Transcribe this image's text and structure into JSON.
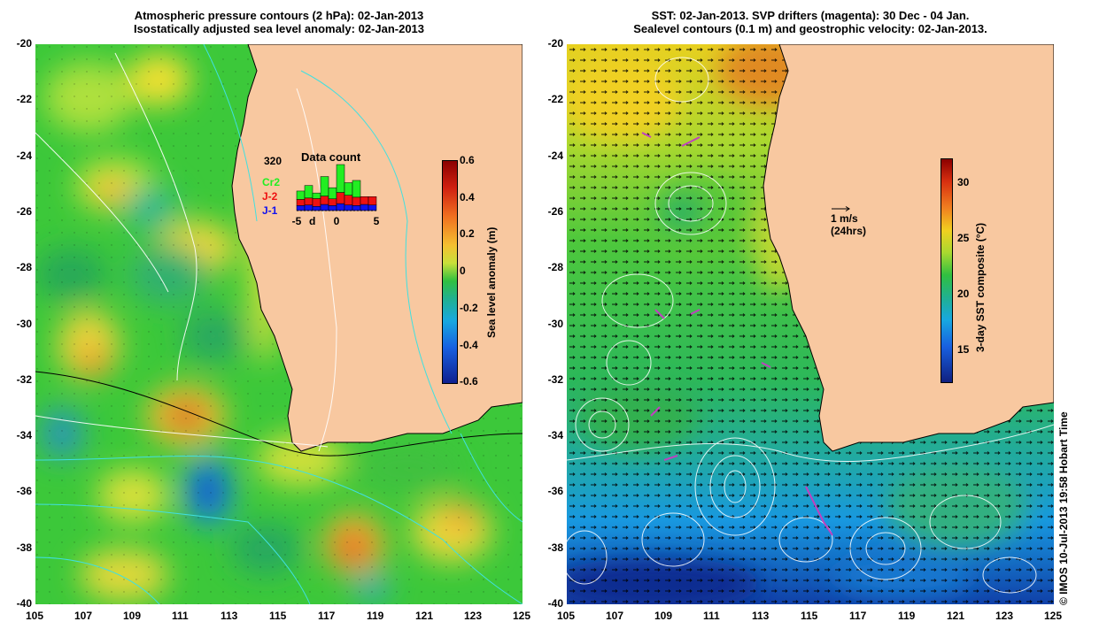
{
  "left_panel": {
    "title_line1": "Atmospheric pressure contours (2 hPa): 02-Jan-2013",
    "title_line2": "Isostatically adjusted sea level anomaly: 02-Jan-2013",
    "colorbar": {
      "label": "Sea level anomaly (m)",
      "ticks": [
        "0.6",
        "0.4",
        "0.2",
        "0",
        "-0.2",
        "-0.4",
        "-0.6"
      ]
    },
    "inset": {
      "title": "Data count",
      "max_label": "320",
      "legend": [
        {
          "name": "Cr2",
          "color": "#22ee22"
        },
        {
          "name": "J-2",
          "color": "#ee1111"
        },
        {
          "name": "J-1",
          "color": "#1111ee"
        }
      ],
      "x_ticks": [
        "-5",
        "0",
        "5"
      ],
      "x_tick_values": [
        -5,
        0,
        5
      ],
      "x_range": [
        -5,
        5
      ],
      "d_label": "d",
      "bars": [
        {
          "day": -5,
          "j1": 18,
          "j2": 22,
          "cr2": 30
        },
        {
          "day": -4,
          "j1": 20,
          "j2": 25,
          "cr2": 45
        },
        {
          "day": -3,
          "j1": 15,
          "j2": 28,
          "cr2": 20
        },
        {
          "day": -2,
          "j1": 22,
          "j2": 30,
          "cr2": 70
        },
        {
          "day": -1,
          "j1": 18,
          "j2": 24,
          "cr2": 40
        },
        {
          "day": 0,
          "j1": 25,
          "j2": 40,
          "cr2": 100
        },
        {
          "day": 1,
          "j1": 20,
          "j2": 35,
          "cr2": 45
        },
        {
          "day": 2,
          "j1": 18,
          "j2": 30,
          "cr2": 60
        },
        {
          "day": 3,
          "j1": 22,
          "j2": 28,
          "cr2": 0
        },
        {
          "day": 4,
          "j1": 20,
          "j2": 30,
          "cr2": 0
        }
      ]
    }
  },
  "right_panel": {
    "title_line1": "SST: 02-Jan-2013. SVP drifters (magenta): 30 Dec - 04 Jan.",
    "title_line2": "Sealevel contours (0.1 m) and geostrophic velocity: 02-Jan-2013.",
    "colorbar": {
      "label": "3-day SST composite (°C)",
      "ticks": [
        "30",
        "25",
        "20",
        "15"
      ]
    },
    "vector_scale": {
      "line1": "1 m/s",
      "line2": "(24hrs)"
    }
  },
  "axes": {
    "lat_ticks": [
      "-20",
      "-22",
      "-24",
      "-26",
      "-28",
      "-30",
      "-32",
      "-34",
      "-36",
      "-38",
      "-40"
    ],
    "lon_ticks": [
      "105",
      "107",
      "109",
      "111",
      "113",
      "115",
      "117",
      "119",
      "121",
      "123",
      "125"
    ]
  },
  "credit": "© IMOS 10-Jul-2013 19:58 Hobart Time"
}
